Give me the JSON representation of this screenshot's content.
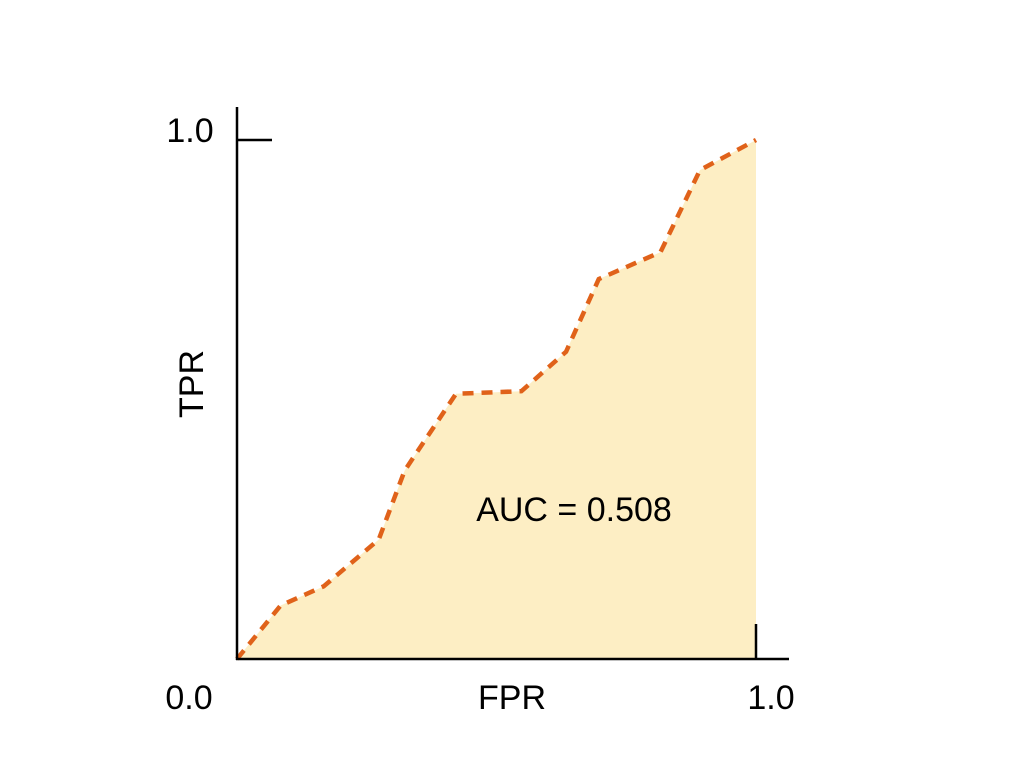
{
  "chart_data": {
    "type": "area",
    "xlabel": "FPR",
    "ylabel": "TPR",
    "xlim": [
      0,
      1
    ],
    "ylim": [
      0,
      1
    ],
    "x_tick_labels": [
      "0.0",
      "1.0"
    ],
    "y_tick_labels": [
      "1.0"
    ],
    "annotation": "AUC = 0.508",
    "grid": false,
    "line_style": "dashed",
    "colors": {
      "line": "#e0621a",
      "fill": "#fdeec4",
      "axis": "#000000"
    },
    "x": [
      0,
      0.084,
      0.167,
      0.273,
      0.323,
      0.422,
      0.548,
      0.634,
      0.697,
      0.816,
      0.892,
      1.0
    ],
    "y": [
      0,
      0.103,
      0.14,
      0.23,
      0.363,
      0.511,
      0.516,
      0.592,
      0.732,
      0.784,
      0.942,
      1.0
    ]
  }
}
